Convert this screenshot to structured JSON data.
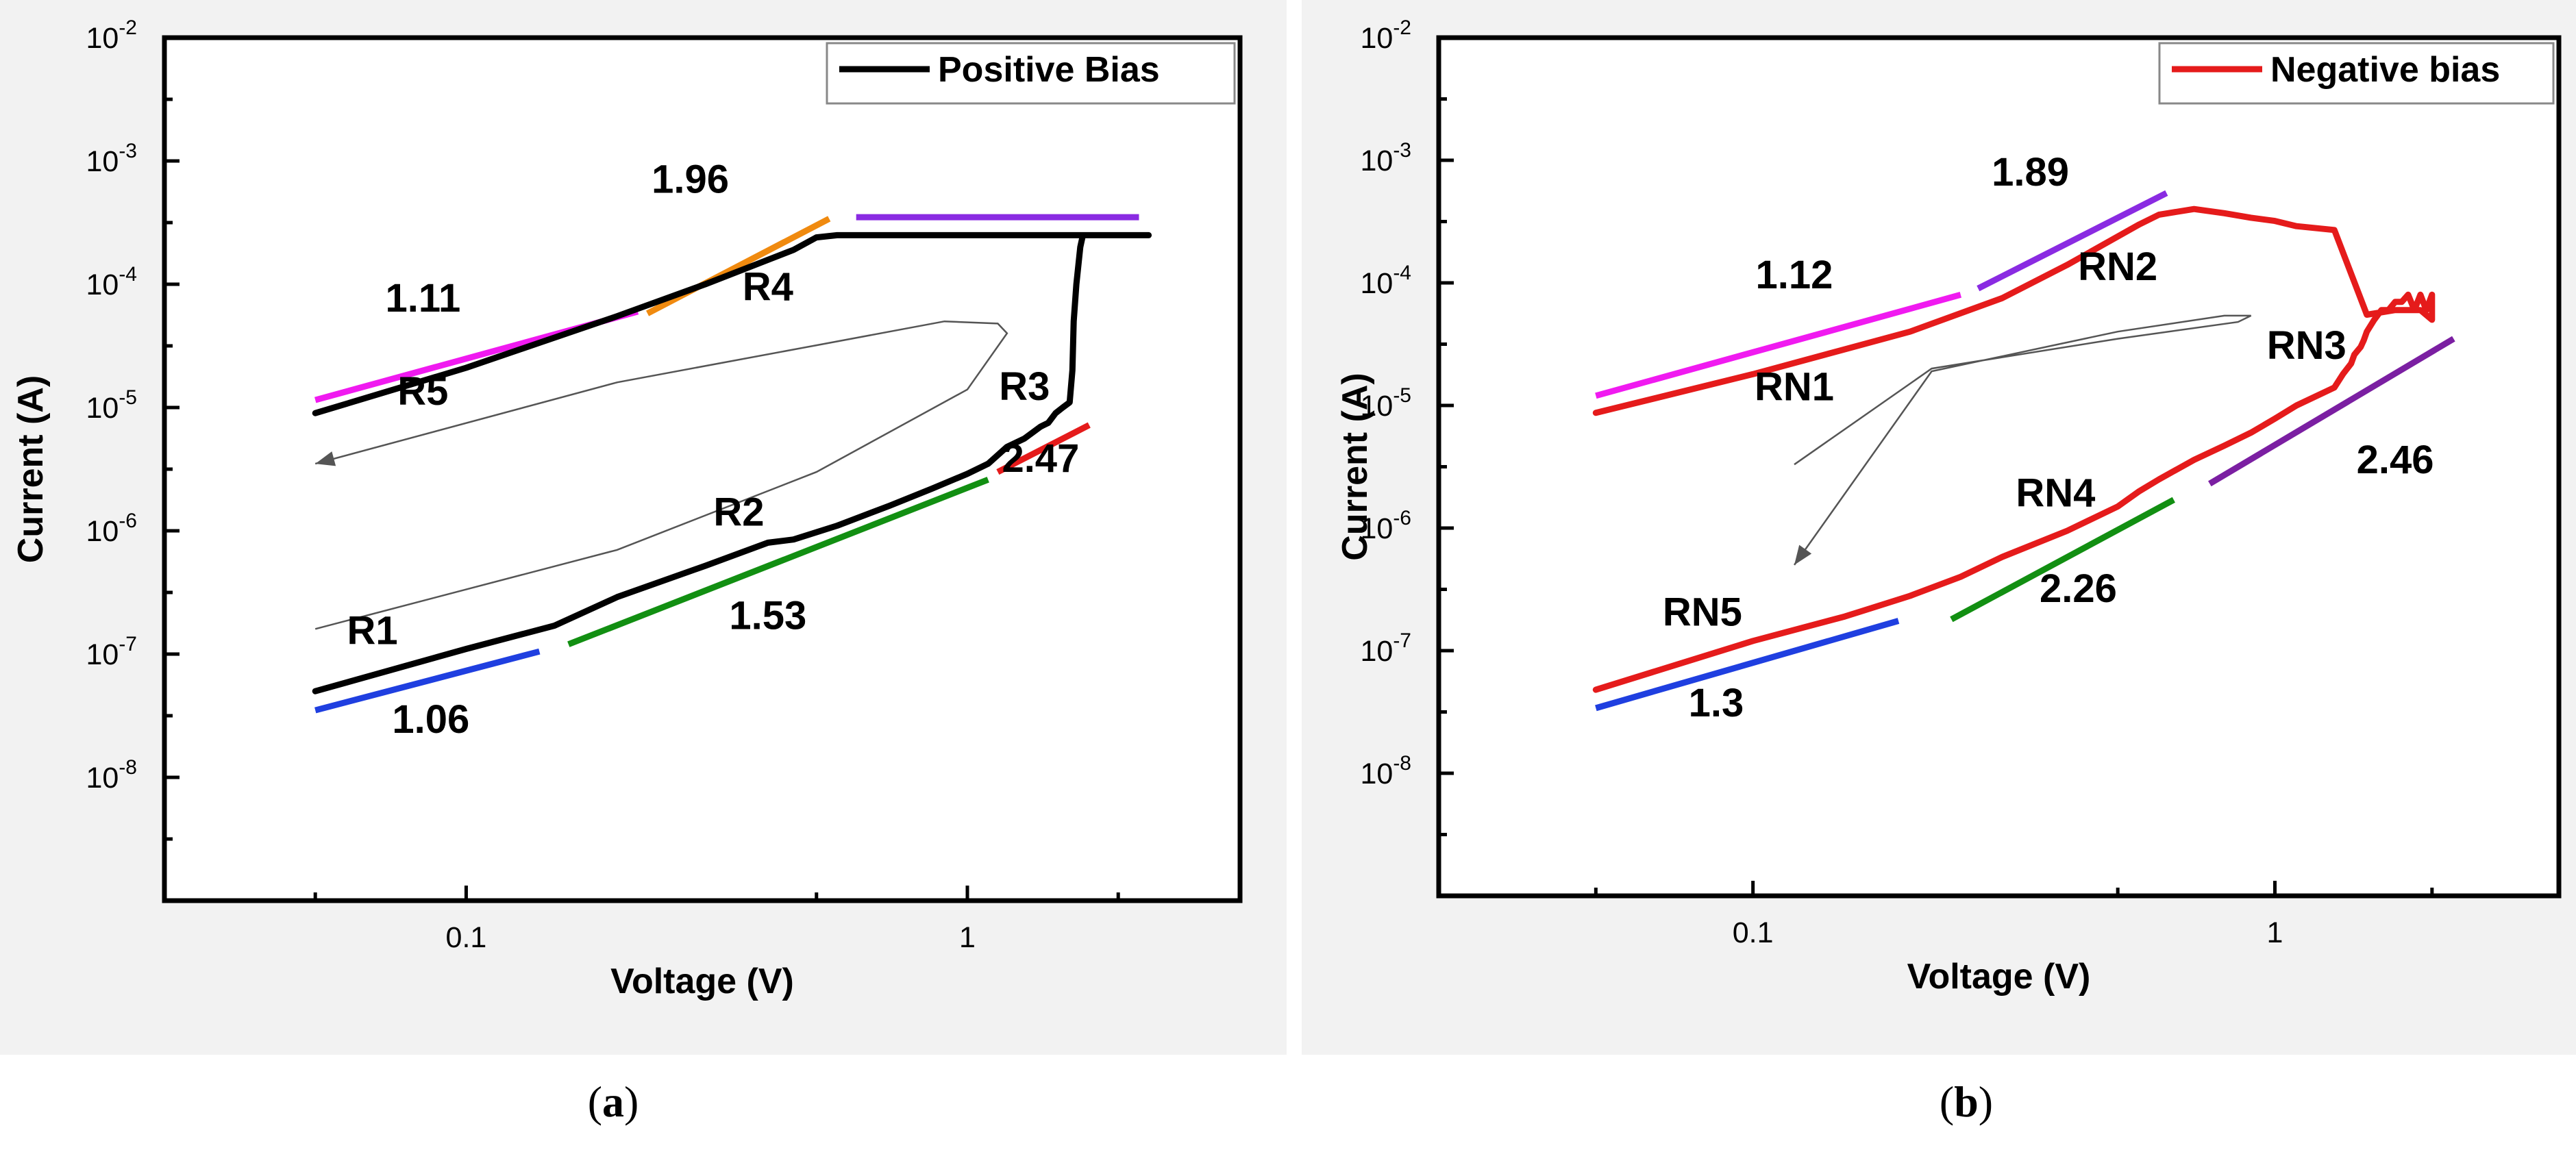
{
  "figure": {
    "captions": [
      {
        "open": "(",
        "letter": "a",
        "close": ")"
      },
      {
        "open": "(",
        "letter": "b",
        "close": ")"
      }
    ]
  },
  "chart_data": [
    {
      "type": "line",
      "panel": "a",
      "xlabel": "Voltage (V)",
      "ylabel": "Current (A)",
      "xscale": "log",
      "yscale": "log",
      "xlim": [
        0.025,
        3.5
      ],
      "ylim": [
        1e-09,
        0.01
      ],
      "xticks": [
        {
          "value": 0.1,
          "label": "0.1"
        },
        {
          "value": 1,
          "label": "1"
        }
      ],
      "yticks": [
        {
          "value": 1e-08,
          "base": "10",
          "exp": "-8"
        },
        {
          "value": 1e-07,
          "base": "10",
          "exp": "-7"
        },
        {
          "value": 1e-06,
          "base": "10",
          "exp": "-6"
        },
        {
          "value": 1e-05,
          "base": "10",
          "exp": "-5"
        },
        {
          "value": 0.0001,
          "base": "10",
          "exp": "-4"
        },
        {
          "value": 0.001,
          "base": "10",
          "exp": "-3"
        },
        {
          "value": 0.01,
          "base": "10",
          "exp": "-2"
        }
      ],
      "legend": {
        "label": "Positive Bias",
        "color": "#000000",
        "placement": "top-right"
      },
      "series": [
        {
          "name": "Positive Bias",
          "color": "#000000",
          "x": [
            0.05,
            0.1,
            0.15,
            0.2,
            0.3,
            0.4,
            0.45,
            0.55,
            0.7,
            0.85,
            1.0,
            1.1,
            1.2,
            1.3,
            1.4,
            1.45,
            1.5,
            1.55,
            1.6,
            1.62,
            1.63,
            1.65,
            1.68,
            1.7,
            2.0,
            2.3,
            2.0,
            1.0,
            0.7,
            0.55,
            0.5,
            0.45,
            0.3,
            0.2,
            0.1,
            0.05
          ],
          "y": [
            5e-08,
            1.1e-07,
            1.7e-07,
            2.9e-07,
            5.2e-07,
            8e-07,
            8.5e-07,
            1.1e-06,
            1.6e-06,
            2.2e-06,
            2.9e-06,
            3.5e-06,
            4.8e-06,
            5.6e-06,
            7e-06,
            7.5e-06,
            9e-06,
            1e-05,
            1.1e-05,
            2e-05,
            5e-05,
            0.0001,
            0.0002,
            0.00025,
            0.00025,
            0.00025,
            0.00025,
            0.00025,
            0.00025,
            0.00025,
            0.00024,
            0.00019,
            0.0001,
            5.5e-05,
            2.1e-05,
            9e-06
          ]
        }
      ],
      "guide_arrow": {
        "color": "#555555",
        "x": [
          0.05,
          0.2,
          0.5,
          1.0,
          1.2,
          1.15,
          0.9,
          0.5,
          0.2,
          0.05
        ],
        "y": [
          1.6e-07,
          7e-07,
          3e-06,
          1.4e-05,
          4e-05,
          4.8e-05,
          5e-05,
          3.2e-05,
          1.6e-05,
          3.5e-06
        ]
      },
      "fits": [
        {
          "slope": "1.06",
          "color": "#1f3fe0",
          "x": [
            0.05,
            0.14
          ],
          "y": [
            3.5e-08,
            1.05e-07
          ]
        },
        {
          "slope": "1.53",
          "color": "#128f12",
          "x": [
            0.16,
            1.1
          ],
          "y": [
            1.2e-07,
            2.6e-06
          ]
        },
        {
          "slope": "2.47",
          "color": "#e51b1b",
          "x": [
            1.15,
            1.75
          ],
          "y": [
            3e-06,
            7.2e-06
          ]
        },
        {
          "slope": "1.96",
          "color": "#f08a0f",
          "x": [
            0.23,
            0.53
          ],
          "y": [
            5.8e-05,
            0.00034
          ]
        },
        {
          "slope": "1.11",
          "color": "#f01af0",
          "x": [
            0.05,
            0.22
          ],
          "y": [
            1.15e-05,
            6e-05
          ]
        },
        {
          "slope": "",
          "color": "#8a2be2",
          "x": [
            0.6,
            2.2
          ],
          "y": [
            0.00035,
            0.00035
          ]
        }
      ],
      "annotations": [
        {
          "text": "1.96",
          "x": 0.28,
          "y": 0.00055
        },
        {
          "text": "1.11",
          "x": 0.082,
          "y": 6e-05
        },
        {
          "text": "R4",
          "x": 0.4,
          "y": 7.4e-05
        },
        {
          "text": "R5",
          "x": 0.082,
          "y": 1.05e-05
        },
        {
          "text": "R3",
          "x": 1.3,
          "y": 1.15e-05
        },
        {
          "text": "2.47",
          "x": 1.4,
          "y": 3e-06
        },
        {
          "text": "R2",
          "x": 0.35,
          "y": 1.1e-06
        },
        {
          "text": "1.53",
          "x": 0.4,
          "y": 1.6e-07
        },
        {
          "text": "R1",
          "x": 0.065,
          "y": 1.2e-07
        },
        {
          "text": "1.06",
          "x": 0.085,
          "y": 2.3e-08
        }
      ]
    },
    {
      "type": "line",
      "panel": "b",
      "xlabel": "Voltage (V)",
      "ylabel": "Current (A)",
      "xscale": "log",
      "yscale": "log",
      "xlim": [
        0.025,
        3.5
      ],
      "ylim": [
        1e-09,
        0.01
      ],
      "xticks": [
        {
          "value": 0.1,
          "label": "0.1"
        },
        {
          "value": 1,
          "label": "1"
        }
      ],
      "yticks": [
        {
          "value": 1e-08,
          "base": "10",
          "exp": "-8"
        },
        {
          "value": 1e-07,
          "base": "10",
          "exp": "-7"
        },
        {
          "value": 1e-06,
          "base": "10",
          "exp": "-6"
        },
        {
          "value": 1e-05,
          "base": "10",
          "exp": "-5"
        },
        {
          "value": 0.0001,
          "base": "10",
          "exp": "-4"
        },
        {
          "value": 0.001,
          "base": "10",
          "exp": "-3"
        },
        {
          "value": 0.01,
          "base": "10",
          "exp": "-2"
        }
      ],
      "legend": {
        "label": "Negative bias",
        "color": "#e51b1b",
        "placement": "top-right"
      },
      "series": [
        {
          "name": "Negative bias",
          "color": "#e51b1b",
          "x": [
            0.05,
            0.1,
            0.15,
            0.2,
            0.23,
            0.25,
            0.3,
            0.4,
            0.5,
            0.55,
            0.6,
            0.7,
            0.8,
            0.9,
            1.0,
            1.1,
            1.3,
            1.35,
            1.4,
            1.42,
            1.44,
            1.46,
            1.48,
            1.5,
            1.55,
            1.6,
            1.65,
            1.7,
            1.75,
            1.8,
            1.85,
            1.9,
            1.95,
            2.0,
            2.0,
            1.9,
            1.7,
            1.5,
            1.3,
            1.1,
            1.0,
            0.9,
            0.8,
            0.7,
            0.6,
            0.55,
            0.4,
            0.3,
            0.2,
            0.1,
            0.05
          ],
          "y": [
            4.8e-08,
            1.2e-07,
            1.9e-07,
            2.8e-07,
            3.5e-07,
            4e-07,
            5.8e-07,
            9.5e-07,
            1.5e-06,
            2e-06,
            2.5e-06,
            3.6e-06,
            4.7e-06,
            6e-06,
            7.8e-06,
            1e-05,
            1.4e-05,
            1.8e-05,
            2.2e-05,
            2.6e-05,
            2.8e-05,
            3e-05,
            3.4e-05,
            4e-05,
            5e-05,
            6e-05,
            6e-05,
            7e-05,
            7e-05,
            8e-05,
            6e-05,
            8e-05,
            6e-05,
            8e-05,
            5e-05,
            6e-05,
            6e-05,
            5.5e-05,
            0.00027,
            0.00029,
            0.00032,
            0.00034,
            0.00037,
            0.0004,
            0.00036,
            0.0003,
            0.00014,
            7.5e-05,
            4e-05,
            1.8e-05,
            8.7e-06
          ]
        }
      ],
      "guide_arrow": {
        "color": "#555555",
        "x": [
          0.12,
          0.22,
          0.5,
          0.85,
          0.9,
          0.8,
          0.5,
          0.22,
          0.12
        ],
        "y": [
          3.3e-06,
          2e-05,
          3.5e-05,
          4.8e-05,
          5.4e-05,
          5.4e-05,
          4e-05,
          1.9e-05,
          5e-07
        ]
      },
      "fits": [
        {
          "slope": "1.3",
          "color": "#1f3fe0",
          "x": [
            0.05,
            0.19
          ],
          "y": [
            3.4e-08,
            1.75e-07
          ]
        },
        {
          "slope": "2.26",
          "color": "#128f12",
          "x": [
            0.24,
            0.64
          ],
          "y": [
            1.8e-07,
            1.7e-06
          ]
        },
        {
          "slope": "2.46",
          "color": "#7b1fa2",
          "x": [
            0.75,
            2.2
          ],
          "y": [
            2.3e-06,
            3.5e-05
          ]
        },
        {
          "slope": "1.12",
          "color": "#f01af0",
          "x": [
            0.05,
            0.25
          ],
          "y": [
            1.2e-05,
            8e-05
          ]
        },
        {
          "slope": "1.89",
          "color": "#8a2be2",
          "x": [
            0.27,
            0.62
          ],
          "y": [
            9e-05,
            0.00054
          ]
        }
      ],
      "annotations": [
        {
          "text": "1.89",
          "x": 0.34,
          "y": 0.00062
        },
        {
          "text": "1.12",
          "x": 0.12,
          "y": 9e-05
        },
        {
          "text": "RN2",
          "x": 0.5,
          "y": 0.000105
        },
        {
          "text": "RN1",
          "x": 0.12,
          "y": 1.1e-05
        },
        {
          "text": "RN3",
          "x": 1.15,
          "y": 2.4e-05
        },
        {
          "text": "2.46",
          "x": 1.7,
          "y": 2.8e-06
        },
        {
          "text": "RN4",
          "x": 0.38,
          "y": 1.5e-06
        },
        {
          "text": "2.26",
          "x": 0.42,
          "y": 2.5e-07
        },
        {
          "text": "RN5",
          "x": 0.08,
          "y": 1.6e-07
        },
        {
          "text": "1.3",
          "x": 0.085,
          "y": 2.9e-08
        }
      ]
    }
  ]
}
